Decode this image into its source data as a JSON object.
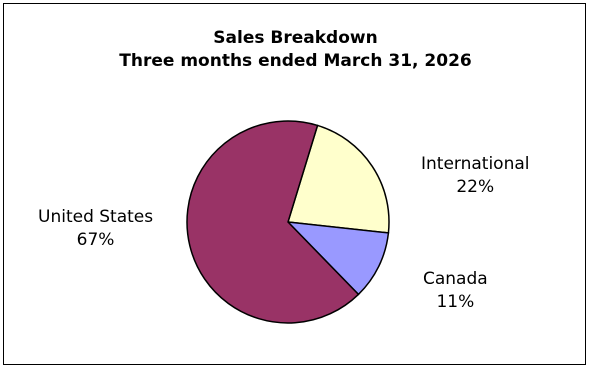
{
  "chart_data": {
    "type": "pie",
    "title": "Sales Breakdown",
    "subtitle": "Three months ended March 31, 2026",
    "slices": [
      {
        "label": "International",
        "value": 22,
        "value_label": "22%",
        "color": "#FFFFCC"
      },
      {
        "label": "Canada",
        "value": 11,
        "value_label": "11%",
        "color": "#9999FF"
      },
      {
        "label": "United States",
        "value": 67,
        "value_label": "67%",
        "color": "#993366"
      }
    ],
    "start_angle_deg": 17,
    "direction": "clockwise",
    "outline_color": "#000000",
    "legend": "none"
  }
}
